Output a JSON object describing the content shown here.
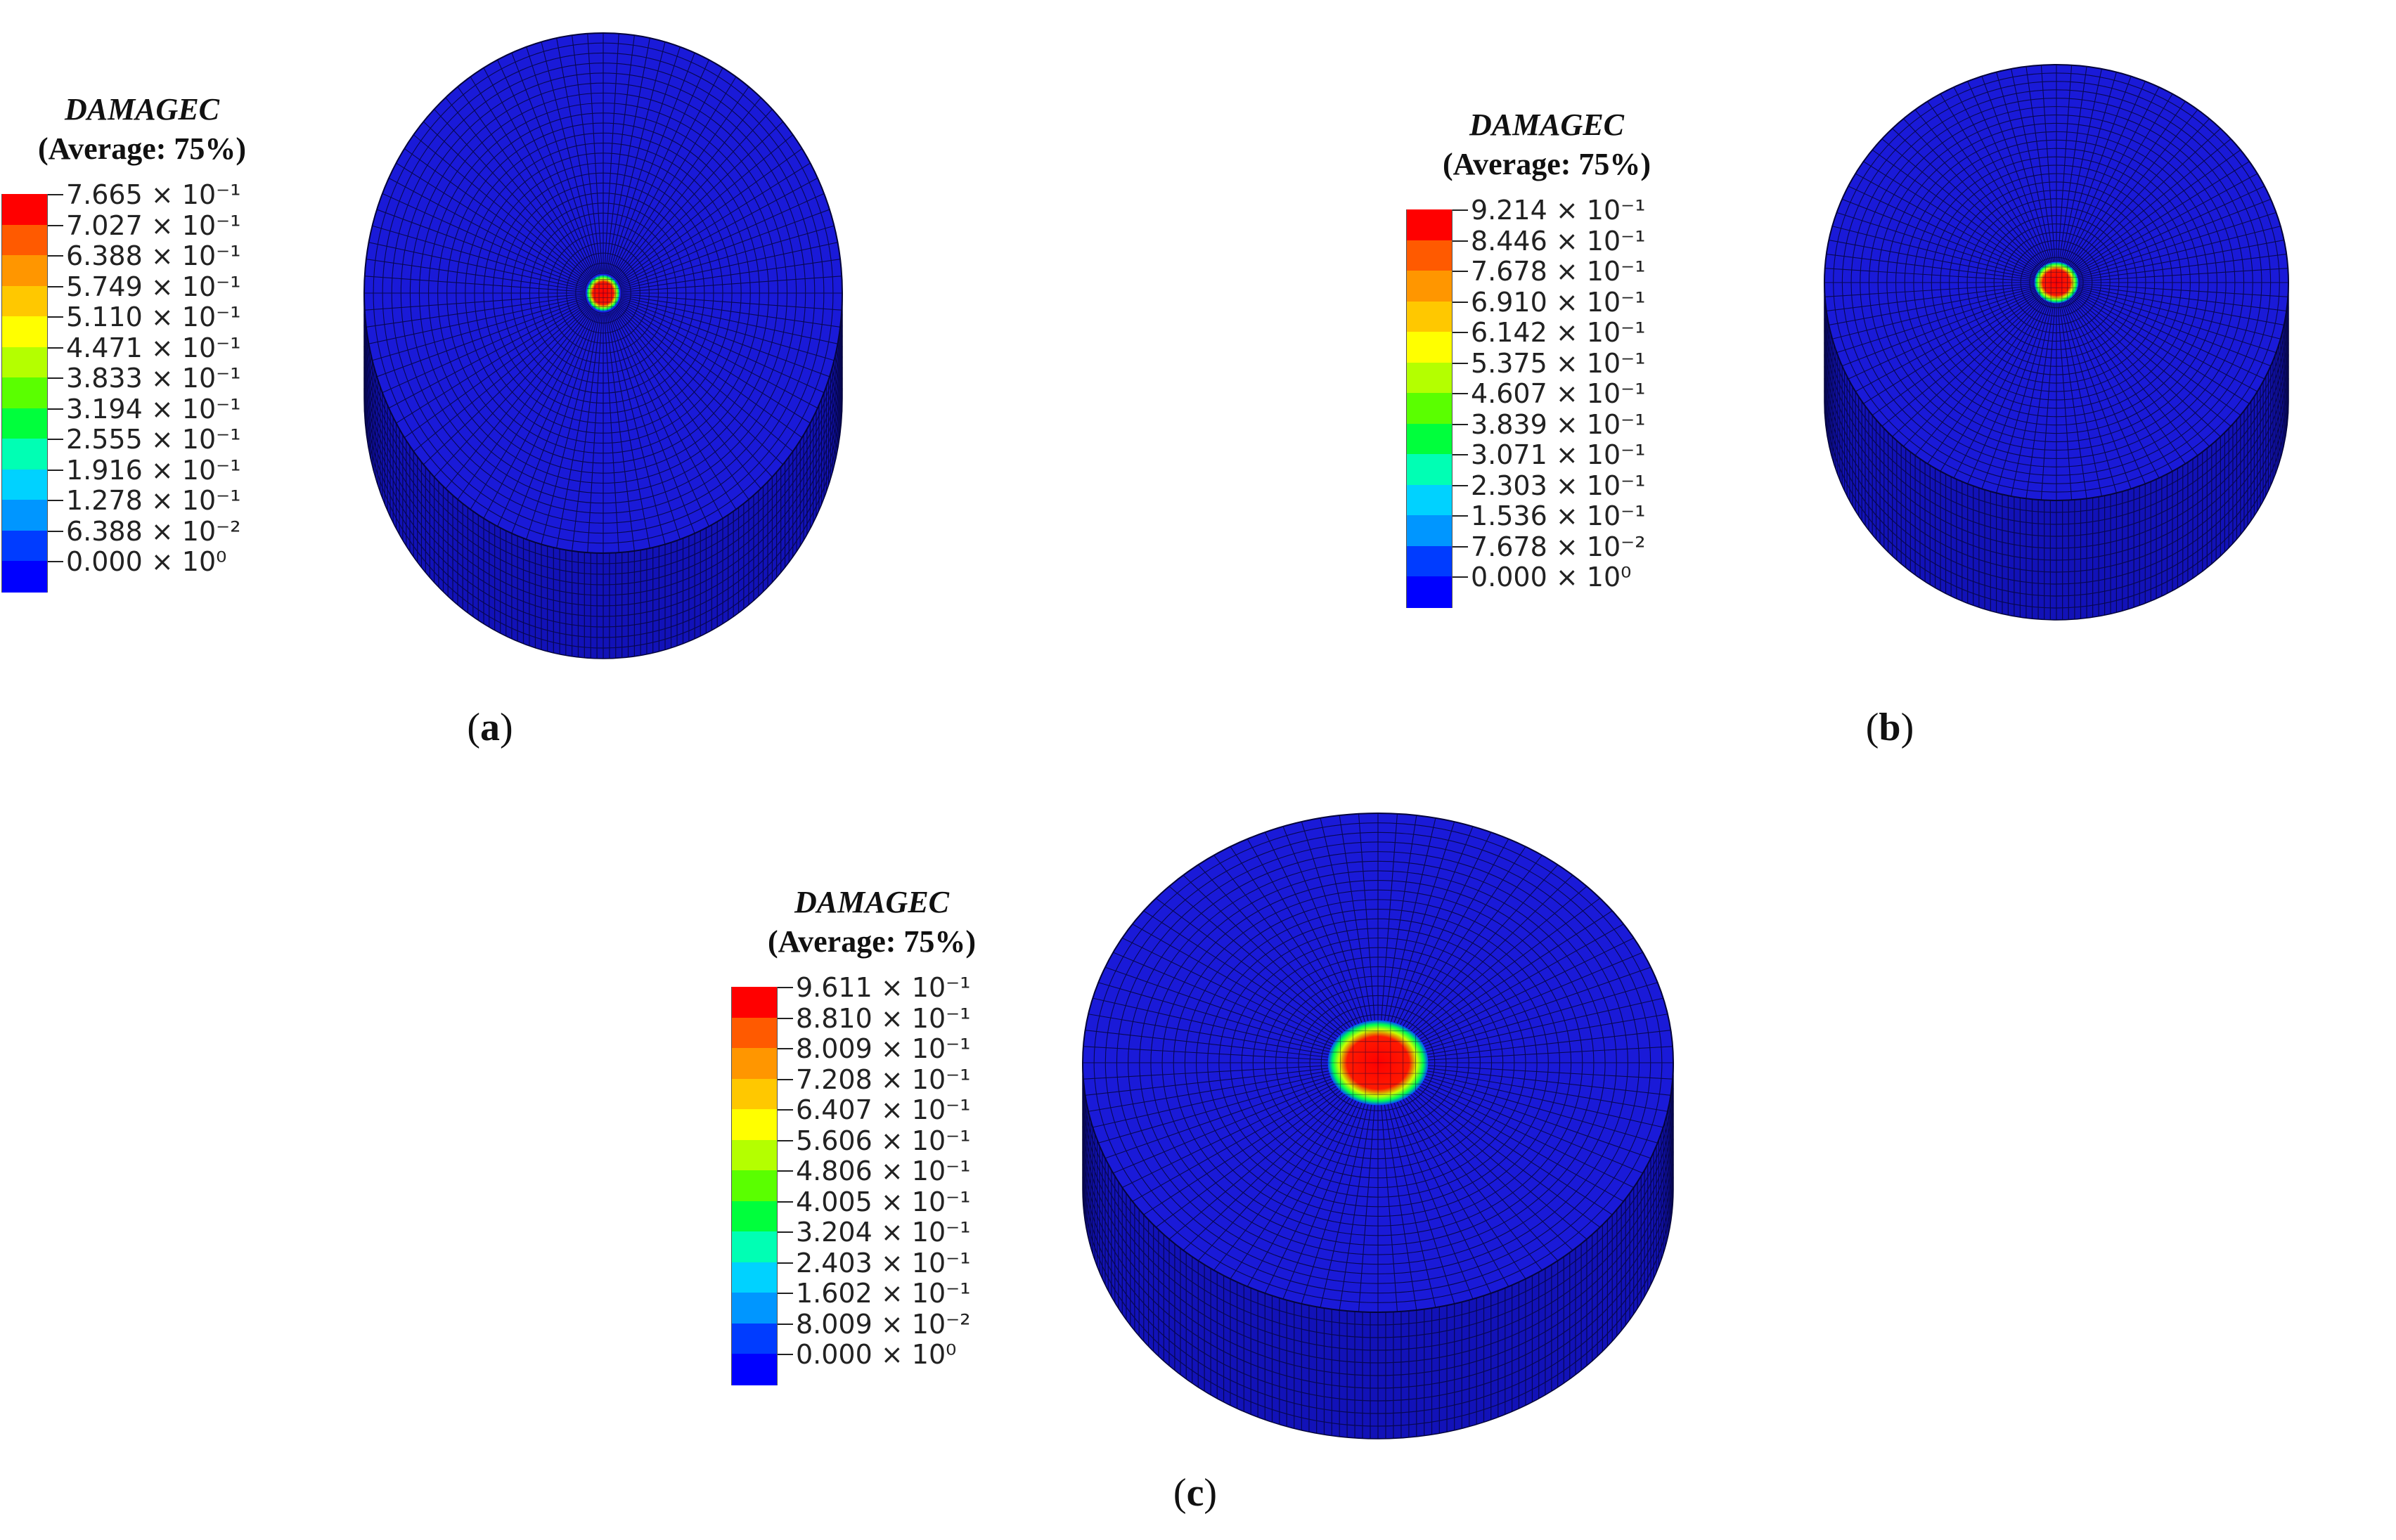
{
  "panels": [
    {
      "id": "a",
      "label": "a",
      "legend": {
        "title": "DAMAGEC",
        "subtitle": "(Average: 75%)",
        "ticks": [
          "7.665 × 10⁻¹",
          "7.027 × 10⁻¹",
          "6.388 × 10⁻¹",
          "5.749 × 10⁻¹",
          "5.110 × 10⁻¹",
          "4.471 × 10⁻¹",
          "3.833 × 10⁻¹",
          "3.194 × 10⁻¹",
          "2.555 × 10⁻¹",
          "1.916 × 10⁻¹",
          "1.278 × 10⁻¹",
          "6.388 × 10⁻²",
          "0.000 × 10⁰"
        ]
      },
      "damage_spot_fraction": 0.07
    },
    {
      "id": "b",
      "label": "b",
      "legend": {
        "title": "DAMAGEC",
        "subtitle": "(Average: 75%)",
        "ticks": [
          "9.214 × 10⁻¹",
          "8.446 × 10⁻¹",
          "7.678 × 10⁻¹",
          "6.910 × 10⁻¹",
          "6.142 × 10⁻¹",
          "5.375 × 10⁻¹",
          "4.607 × 10⁻¹",
          "3.839 × 10⁻¹",
          "3.071 × 10⁻¹",
          "2.303 × 10⁻¹",
          "1.536 × 10⁻¹",
          "7.678 × 10⁻²",
          "0.000 × 10⁰"
        ]
      },
      "damage_spot_fraction": 0.095
    },
    {
      "id": "c",
      "label": "c",
      "legend": {
        "title": "DAMAGEC",
        "subtitle": "(Average: 75%)",
        "ticks": [
          "9.611 × 10⁻¹",
          "8.810 × 10⁻¹",
          "8.009 × 10⁻¹",
          "7.208 × 10⁻¹",
          "6.407 × 10⁻¹",
          "5.606 × 10⁻¹",
          "4.806 × 10⁻¹",
          "4.005 × 10⁻¹",
          "3.204 × 10⁻¹",
          "2.403 × 10⁻¹",
          "1.602 × 10⁻¹",
          "8.009 × 10⁻²",
          "0.000 × 10⁰"
        ]
      },
      "damage_spot_fraction": 0.17
    }
  ],
  "colors": {
    "scale": [
      "#ff0000",
      "#ff5a00",
      "#ff9600",
      "#ffc800",
      "#ffff00",
      "#b4ff00",
      "#5aff00",
      "#00ff3c",
      "#00ffb4",
      "#00d2ff",
      "#0096ff",
      "#003cff",
      "#0000ff"
    ],
    "mesh_top": "#1a1ad8",
    "mesh_side": "#1212b8",
    "mesh_line": "#05053a"
  }
}
